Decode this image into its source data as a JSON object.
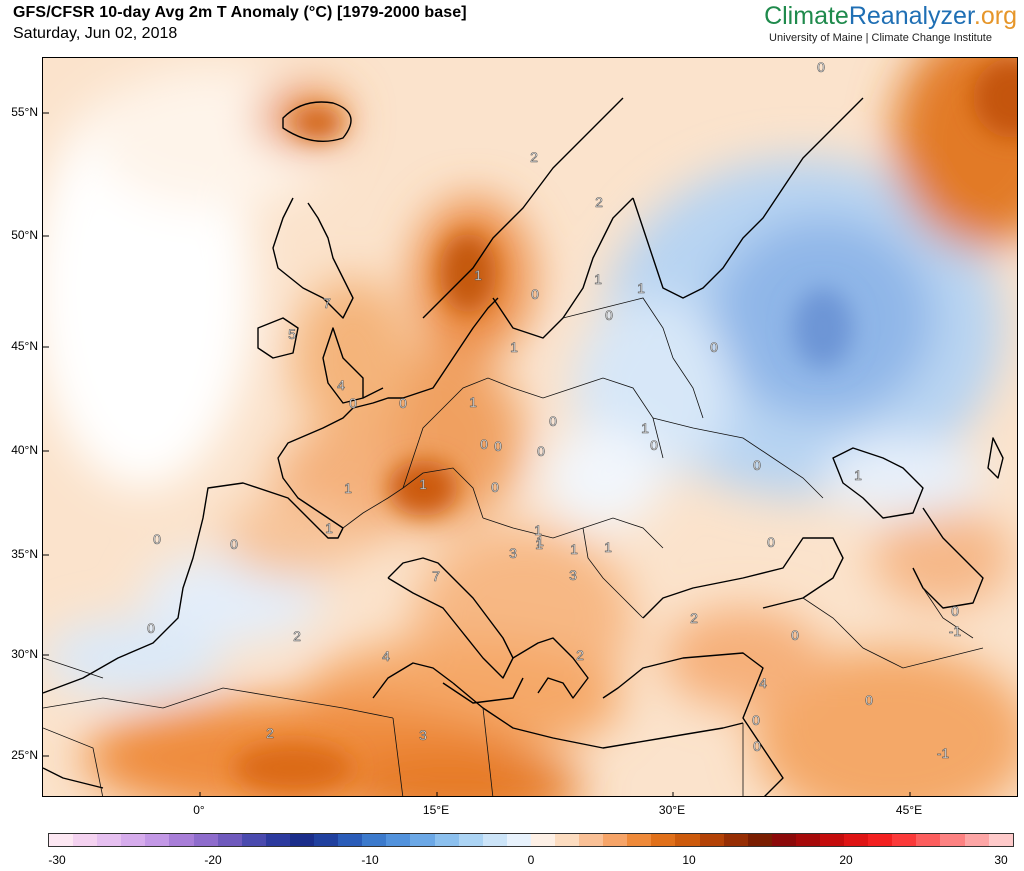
{
  "header": {
    "title": "GFS/CFSR 10-day Avg 2m T Anomaly (°C) [1979-2000 base]",
    "date": "Saturday, Jun 02, 2018",
    "brand_part1": "Climate",
    "brand_part2": "Reanalyzer",
    "brand_part3": ".org",
    "brand_subtitle": "University of Maine | Climate Change Institute"
  },
  "map": {
    "lat_labels": [
      "55°N",
      "50°N",
      "45°N",
      "40°N",
      "35°N",
      "30°N",
      "25°N"
    ],
    "lon_labels": [
      "0°",
      "15°E",
      "30°E",
      "45°E"
    ],
    "anomaly_labels": [
      "0",
      "2",
      "2",
      "1",
      "1",
      "0",
      "1",
      "0",
      "1",
      "0",
      "0",
      "7",
      "5",
      "1",
      "1",
      "0",
      "0",
      "4",
      "1",
      "0",
      "0",
      "1",
      "0",
      "0",
      "0",
      "1",
      "1",
      "0",
      "0",
      "1",
      "0",
      "0",
      "1",
      "3",
      "1",
      "1",
      "0",
      "2",
      "3",
      "7",
      "0",
      "2",
      "4",
      "2",
      "0",
      "-1",
      "3",
      "1",
      "0",
      "0",
      "0",
      "2",
      "4",
      "-1"
    ]
  },
  "colorbar": {
    "tick_labels": [
      "-30",
      "-20",
      "-10",
      "0",
      "10",
      "20",
      "30"
    ],
    "colors": [
      "#fde8f3",
      "#f4d2f0",
      "#e6c0f0",
      "#d6acec",
      "#c398e6",
      "#a87ed8",
      "#8e6ccc",
      "#6f5abd",
      "#4a4aae",
      "#2c3a9e",
      "#1a2d8a",
      "#20409e",
      "#2a5cb8",
      "#3c7acc",
      "#5292dc",
      "#6ca8e6",
      "#8cc0ee",
      "#acd4f4",
      "#cce4f8",
      "#e8f2fc",
      "#fdf0e6",
      "#fcdcc0",
      "#f9c096",
      "#f6a468",
      "#ef8a3a",
      "#e0701a",
      "#cc5a0c",
      "#b34206",
      "#962e04",
      "#7a1e02",
      "#8c0a0a",
      "#a60a0a",
      "#c40c0c",
      "#de1414",
      "#f22020",
      "#fb3a3a",
      "#fc5e5e",
      "#fd8282",
      "#fda6a6",
      "#fecaca"
    ]
  }
}
